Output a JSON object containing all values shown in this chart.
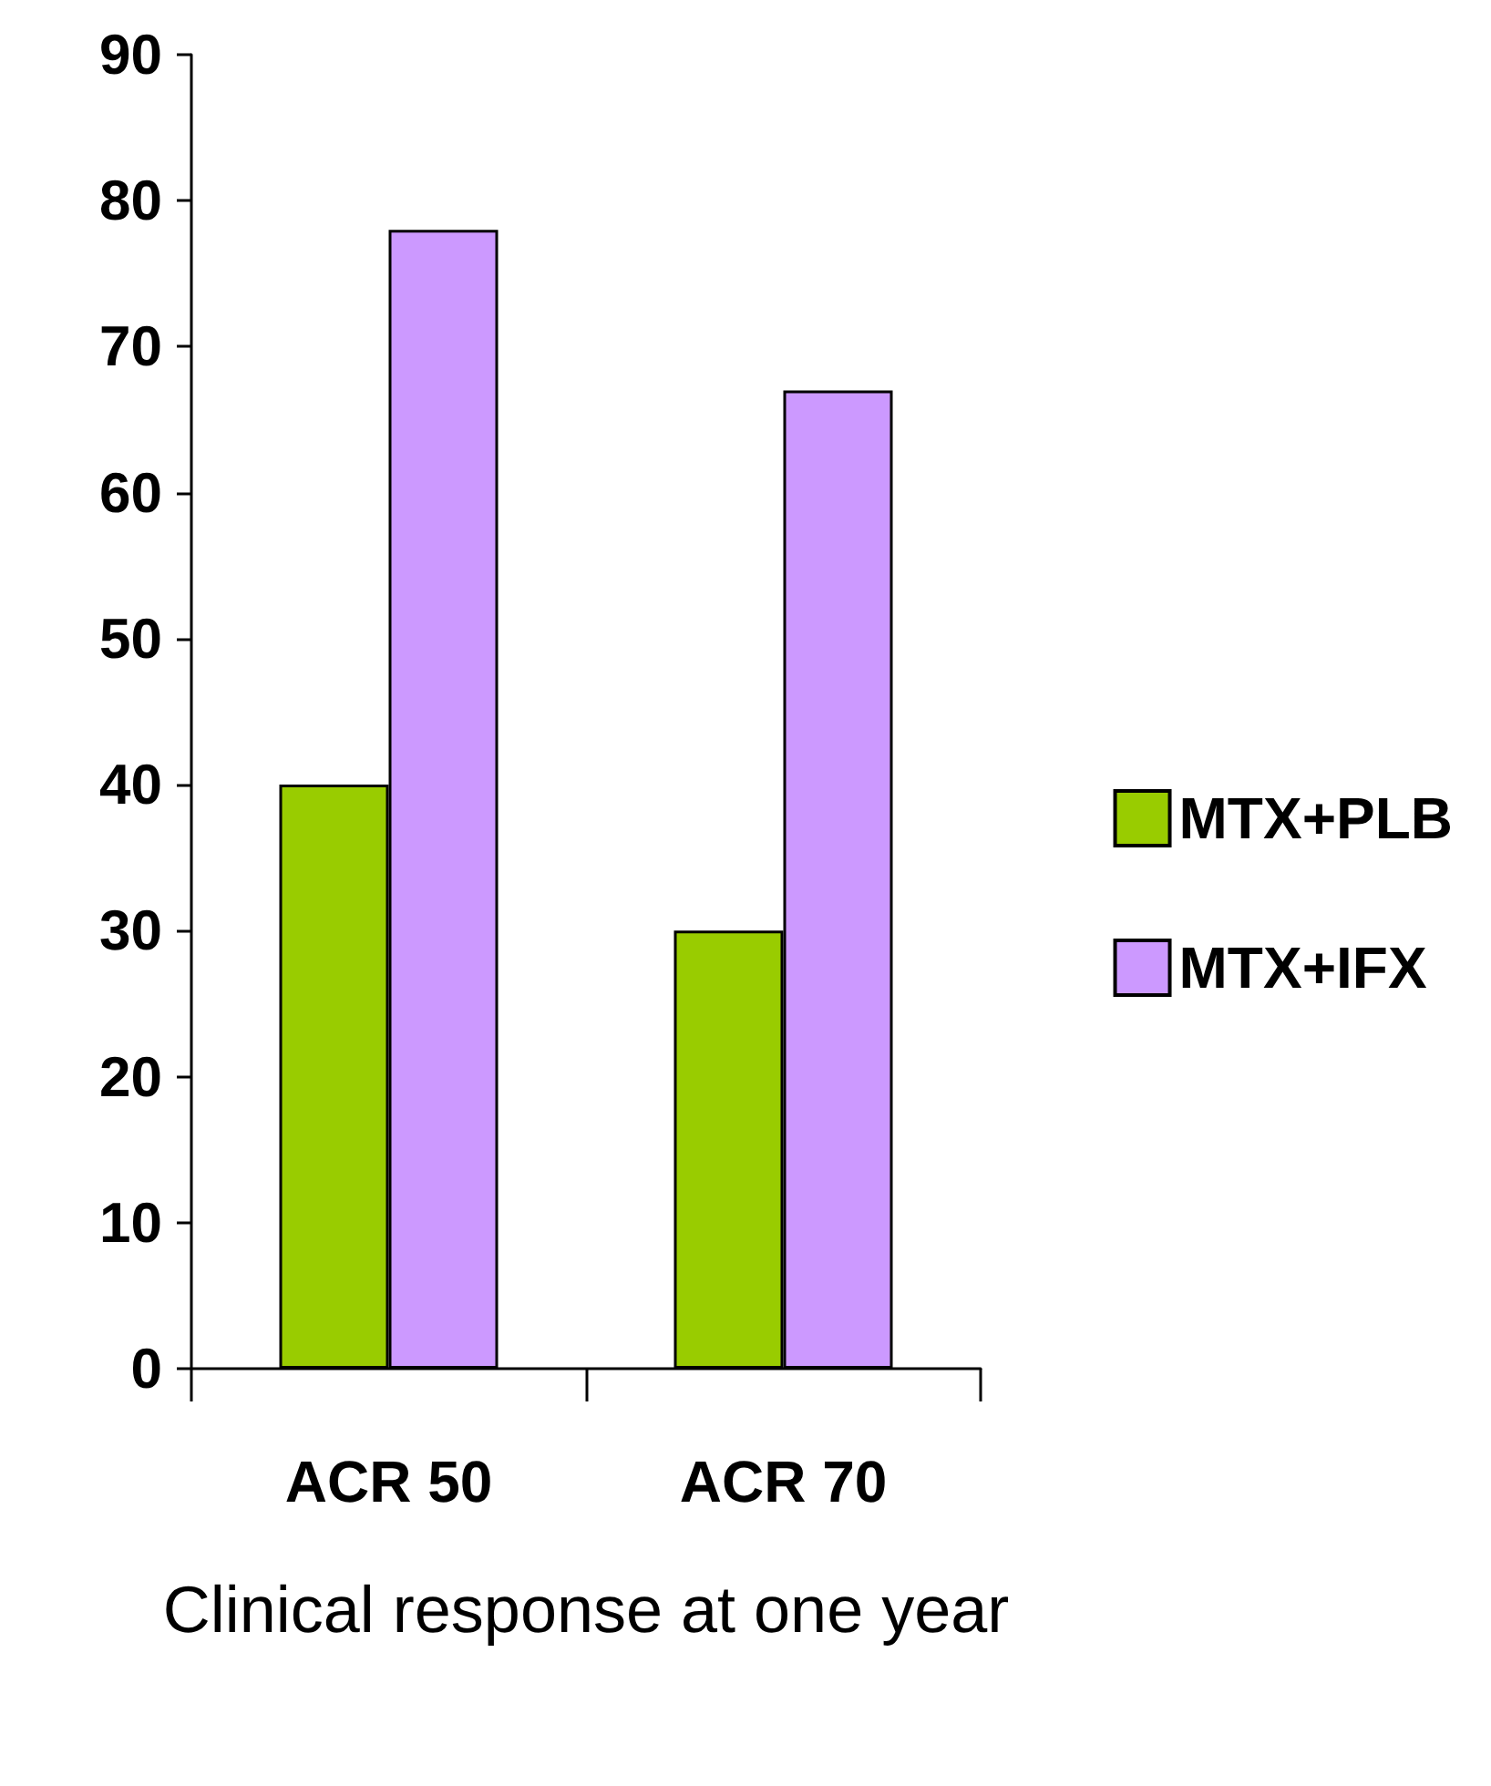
{
  "chart_data": {
    "type": "bar",
    "xlabel": "Clinical response at one year",
    "categories": [
      "ACR 50",
      "ACR 70"
    ],
    "series": [
      {
        "name": "MTX+PLB",
        "color": "#99cc00",
        "values": [
          40,
          30
        ]
      },
      {
        "name": "MTX+IFX",
        "color": "#cc99ff",
        "values": [
          78,
          67
        ]
      }
    ],
    "ylim": [
      0,
      90
    ],
    "yticks": [
      0,
      10,
      20,
      30,
      40,
      50,
      60,
      70,
      80,
      90
    ],
    "grid": false,
    "legend": "right"
  }
}
